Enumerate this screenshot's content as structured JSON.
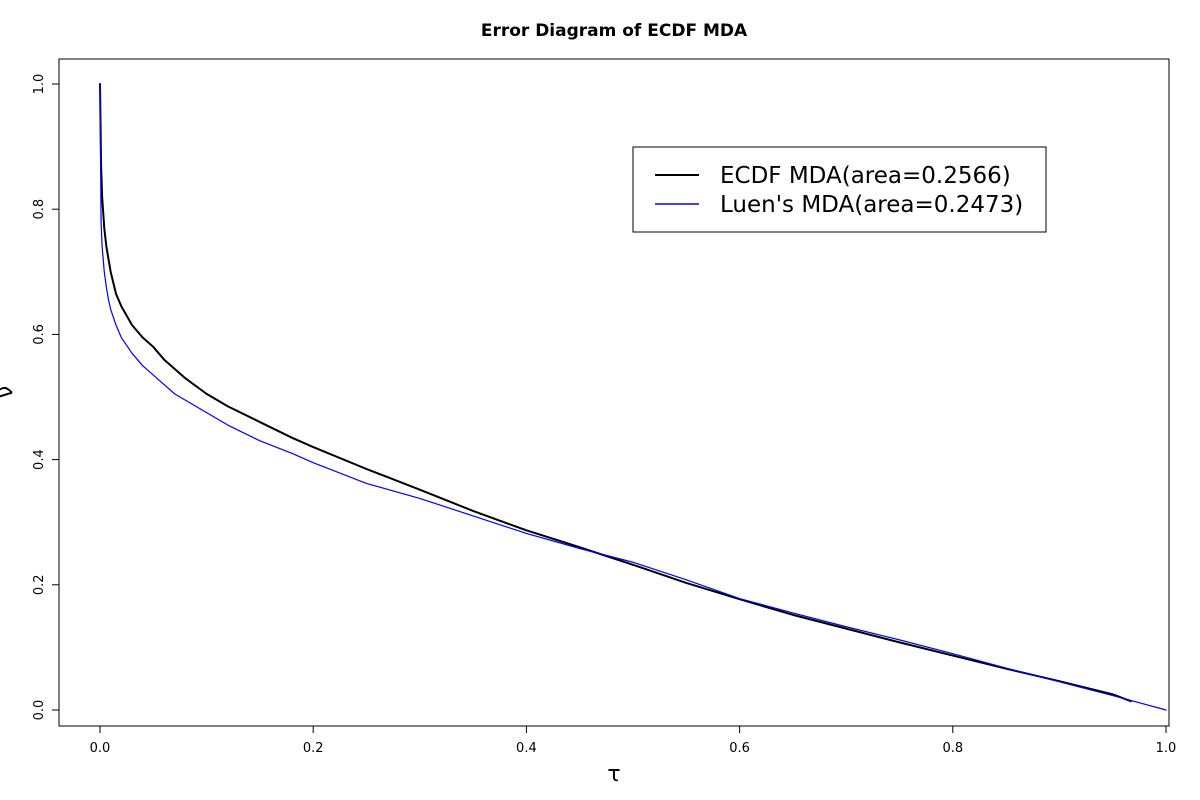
{
  "chart_data": {
    "type": "line",
    "title": "Error Diagram of ECDF MDA",
    "xlabel": "τ",
    "ylabel": "ν",
    "xlim": [
      0.0,
      1.0
    ],
    "ylim": [
      0.0,
      1.0
    ],
    "x_ticks": [
      "0.0",
      "0.2",
      "0.4",
      "0.6",
      "0.8",
      "1.0"
    ],
    "y_ticks": [
      "0.0",
      "0.2",
      "0.4",
      "0.6",
      "0.8",
      "1.0"
    ],
    "grid": false,
    "legend_position": "top-right",
    "series": [
      {
        "name": "ECDF MDA(area=0.2566)",
        "color": "#000000",
        "x": [
          0.0,
          0.001,
          0.002,
          0.004,
          0.006,
          0.008,
          0.01,
          0.015,
          0.02,
          0.03,
          0.04,
          0.05,
          0.06,
          0.07,
          0.08,
          0.1,
          0.12,
          0.15,
          0.18,
          0.2,
          0.25,
          0.3,
          0.35,
          0.4,
          0.45,
          0.5,
          0.55,
          0.6,
          0.65,
          0.7,
          0.75,
          0.8,
          0.85,
          0.9,
          0.95,
          0.967
        ],
        "y": [
          1.0,
          0.87,
          0.82,
          0.77,
          0.74,
          0.72,
          0.7,
          0.665,
          0.645,
          0.615,
          0.595,
          0.58,
          0.56,
          0.545,
          0.53,
          0.505,
          0.485,
          0.46,
          0.435,
          0.42,
          0.385,
          0.352,
          0.318,
          0.287,
          0.26,
          0.232,
          0.203,
          0.177,
          0.152,
          0.13,
          0.108,
          0.087,
          0.066,
          0.046,
          0.025,
          0.014
        ]
      },
      {
        "name": "Luen's MDA(area=0.2473)",
        "color": "#0000ff",
        "x": [
          0.0,
          0.001,
          0.002,
          0.004,
          0.006,
          0.008,
          0.01,
          0.015,
          0.02,
          0.03,
          0.04,
          0.05,
          0.06,
          0.07,
          0.08,
          0.1,
          0.12,
          0.15,
          0.18,
          0.2,
          0.25,
          0.3,
          0.35,
          0.4,
          0.45,
          0.5,
          0.55,
          0.6,
          0.65,
          0.7,
          0.75,
          0.8,
          0.85,
          0.9,
          0.95,
          1.0
        ],
        "y": [
          1.0,
          0.78,
          0.74,
          0.7,
          0.675,
          0.655,
          0.64,
          0.615,
          0.595,
          0.57,
          0.55,
          0.535,
          0.52,
          0.505,
          0.495,
          0.475,
          0.455,
          0.43,
          0.41,
          0.395,
          0.362,
          0.338,
          0.31,
          0.282,
          0.258,
          0.236,
          0.208,
          0.178,
          0.155,
          0.133,
          0.112,
          0.09,
          0.067,
          0.045,
          0.023,
          0.0
        ]
      }
    ]
  }
}
